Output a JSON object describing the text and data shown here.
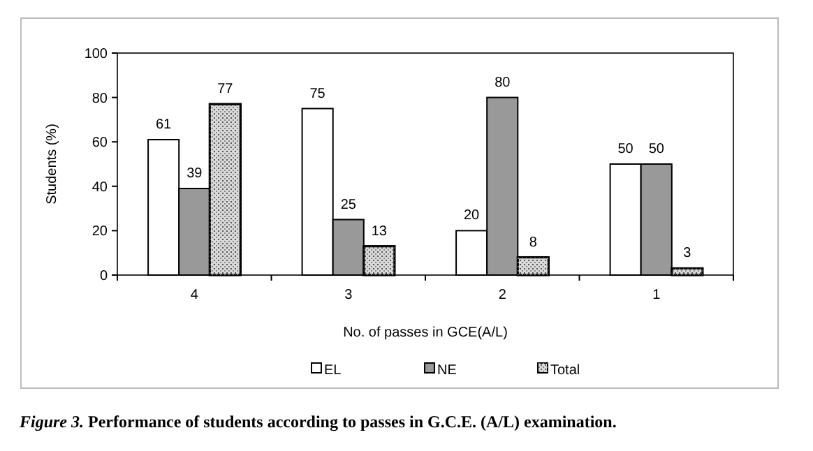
{
  "chart_data": {
    "type": "bar",
    "title": "Figure 3. Performance of students according to passes in G.C.E. (A/L) examination.",
    "xlabel": "No. of passes in GCE(A/L)",
    "ylabel": "Students (%)",
    "categories": [
      "4",
      "3",
      "2",
      "1"
    ],
    "series": [
      {
        "name": "EL",
        "color": "#ffffff",
        "values": [
          61,
          75,
          20,
          50
        ]
      },
      {
        "name": "NE",
        "color": "#999999",
        "values": [
          39,
          25,
          80,
          50
        ]
      },
      {
        "name": "Total",
        "color": "#d9d9d9",
        "values": [
          77,
          13,
          8,
          3
        ]
      }
    ],
    "ylim": [
      0,
      100
    ],
    "yticks": [
      0,
      20,
      40,
      60,
      80,
      100
    ],
    "grid": false,
    "legend": "bottom",
    "data_labels": true
  }
}
